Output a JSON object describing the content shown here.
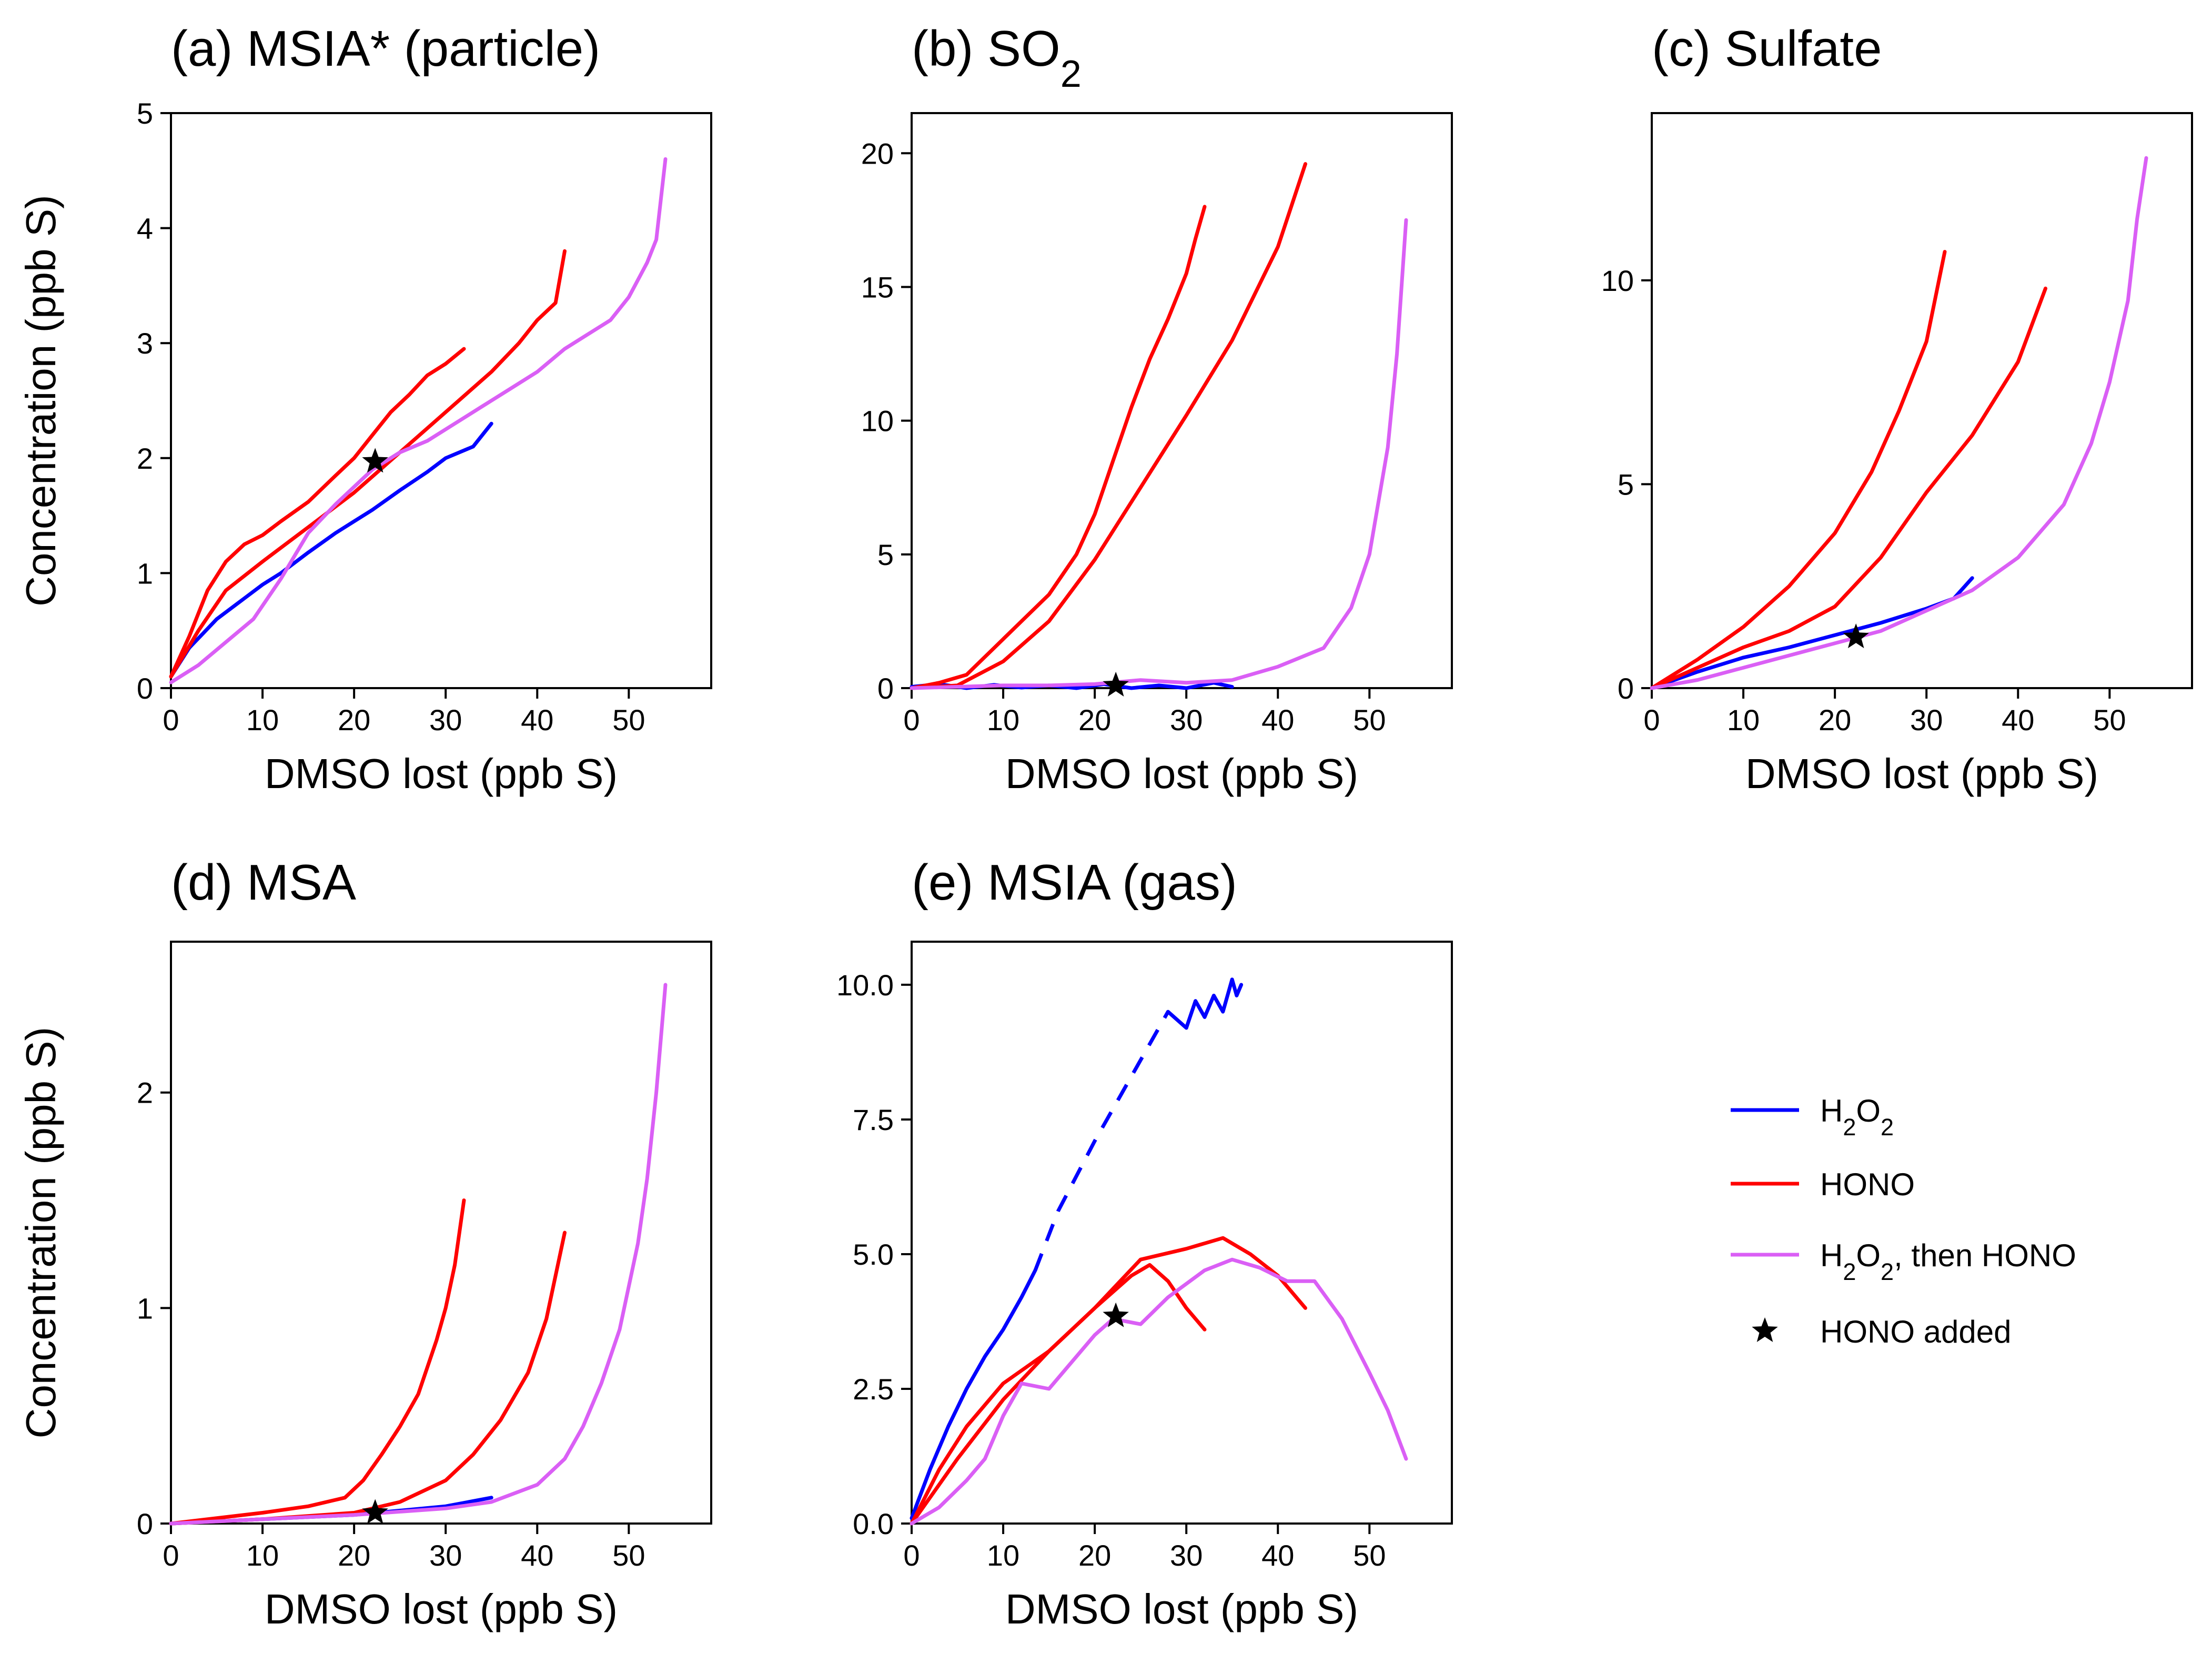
{
  "figure": {
    "legend_position": "right, beside panel (e)"
  },
  "legend": {
    "items": [
      {
        "key": "h2o2",
        "label": "H2O2",
        "color": "#0000FF",
        "marker": "line"
      },
      {
        "key": "hono",
        "label": "HONO",
        "color": "#FF0000",
        "marker": "line"
      },
      {
        "key": "h2o2_then_hono",
        "label": "H2O2, then HONO",
        "color": "#DA5FF5",
        "marker": "line"
      },
      {
        "key": "star",
        "label": "HONO added",
        "color": "#000000",
        "marker": "star"
      }
    ]
  },
  "chart_data": [
    {
      "id": "a",
      "type": "line",
      "title": "(a) MSIA* (particle)",
      "xlabel": "DMSO lost (ppb S)",
      "ylabel": "Concentration (ppb S)",
      "xlim": [
        0,
        59
      ],
      "ylim": [
        0,
        5
      ],
      "xticks": [
        0,
        10,
        20,
        30,
        40,
        50
      ],
      "yticks": [
        0,
        1,
        2,
        3,
        4,
        5
      ],
      "series": [
        {
          "name": "H2O2",
          "color": "#0000FF",
          "x": [
            0,
            2,
            5,
            8,
            10,
            12,
            15,
            18,
            20,
            22,
            25,
            28,
            30,
            33,
            35
          ],
          "y": [
            0.1,
            0.35,
            0.6,
            0.78,
            0.9,
            1.0,
            1.18,
            1.35,
            1.45,
            1.55,
            1.72,
            1.88,
            2.0,
            2.1,
            2.3
          ]
        },
        {
          "name": "HONO (slow)",
          "color": "#FF0000",
          "x": [
            0,
            3,
            6,
            10,
            15,
            20,
            25,
            30,
            35,
            38,
            40,
            42,
            43
          ],
          "y": [
            0.1,
            0.5,
            0.85,
            1.1,
            1.4,
            1.7,
            2.05,
            2.4,
            2.75,
            3.0,
            3.2,
            3.35,
            3.8
          ]
        },
        {
          "name": "HONO (fast)",
          "color": "#FF0000",
          "x": [
            0,
            2,
            4,
            6,
            8,
            10,
            12,
            15,
            18,
            20,
            22,
            24,
            26,
            28,
            30,
            32
          ],
          "y": [
            0.1,
            0.45,
            0.85,
            1.1,
            1.25,
            1.33,
            1.45,
            1.62,
            1.85,
            2.0,
            2.2,
            2.4,
            2.55,
            2.72,
            2.82,
            2.95
          ]
        },
        {
          "name": "H2O2, then HONO",
          "color": "#DA5FF5",
          "x": [
            0,
            3,
            6,
            9,
            12,
            15,
            18,
            22,
            25,
            28,
            31,
            34,
            37,
            40,
            43,
            46,
            48,
            50,
            52,
            53,
            54
          ],
          "y": [
            0.05,
            0.2,
            0.4,
            0.6,
            0.95,
            1.35,
            1.6,
            1.9,
            2.05,
            2.15,
            2.3,
            2.45,
            2.6,
            2.75,
            2.95,
            3.1,
            3.2,
            3.4,
            3.7,
            3.9,
            4.6
          ]
        }
      ],
      "markers": [
        {
          "x": 22.3,
          "y": 1.97,
          "label": "HONO added"
        }
      ]
    },
    {
      "id": "b",
      "type": "line",
      "title": "(b) SO2",
      "xlabel": "DMSO lost (ppb S)",
      "ylabel": "",
      "xlim": [
        0,
        59
      ],
      "ylim": [
        0,
        21.5
      ],
      "xticks": [
        0,
        10,
        20,
        30,
        40,
        50
      ],
      "yticks": [
        0,
        5,
        10,
        15,
        20
      ],
      "series": [
        {
          "name": "H2O2",
          "color": "#0000FF",
          "x": [
            0,
            3,
            6,
            9,
            12,
            15,
            18,
            21,
            24,
            27,
            30,
            33,
            35
          ],
          "y": [
            0.05,
            0.15,
            0.0,
            0.12,
            0.02,
            0.1,
            0.0,
            0.15,
            0.0,
            0.1,
            0.0,
            0.2,
            0.05
          ]
        },
        {
          "name": "HONO (fast)",
          "color": "#FF0000",
          "x": [
            0,
            3,
            6,
            9,
            12,
            15,
            18,
            20,
            22,
            24,
            26,
            28,
            30,
            31,
            32
          ],
          "y": [
            0,
            0.2,
            0.5,
            1.5,
            2.5,
            3.5,
            5.0,
            6.5,
            8.5,
            10.5,
            12.3,
            13.8,
            15.5,
            16.8,
            18.0
          ]
        },
        {
          "name": "HONO (slow)",
          "color": "#FF0000",
          "x": [
            0,
            5,
            10,
            15,
            20,
            25,
            30,
            35,
            40,
            43
          ],
          "y": [
            0,
            0.1,
            1.0,
            2.5,
            4.8,
            7.5,
            10.2,
            13.0,
            16.5,
            19.6
          ]
        },
        {
          "name": "H2O2, then HONO",
          "color": "#DA5FF5",
          "x": [
            0,
            5,
            10,
            15,
            20,
            25,
            30,
            35,
            40,
            45,
            48,
            50,
            52,
            53,
            54
          ],
          "y": [
            0.0,
            0.05,
            0.1,
            0.1,
            0.15,
            0.3,
            0.2,
            0.3,
            0.8,
            1.5,
            3.0,
            5.0,
            9.0,
            12.5,
            17.5
          ]
        }
      ],
      "markers": [
        {
          "x": 22.3,
          "y": 0.1,
          "label": "HONO added"
        }
      ]
    },
    {
      "id": "c",
      "type": "line",
      "title": "(c) Sulfate",
      "xlabel": "DMSO lost (ppb S)",
      "ylabel": "",
      "xlim": [
        0,
        59
      ],
      "ylim": [
        0,
        14.1
      ],
      "xticks": [
        0,
        10,
        20,
        30,
        40,
        50
      ],
      "yticks": [
        0,
        5,
        10
      ],
      "series": [
        {
          "name": "H2O2",
          "color": "#0000FF",
          "x": [
            0,
            5,
            10,
            15,
            20,
            25,
            30,
            33,
            35
          ],
          "y": [
            0.0,
            0.4,
            0.75,
            1.0,
            1.3,
            1.6,
            1.95,
            2.2,
            2.7
          ]
        },
        {
          "name": "HONO (fast)",
          "color": "#FF0000",
          "x": [
            0,
            5,
            10,
            15,
            20,
            24,
            27,
            30,
            31,
            32
          ],
          "y": [
            0,
            0.7,
            1.5,
            2.5,
            3.8,
            5.3,
            6.8,
            8.5,
            9.6,
            10.7
          ]
        },
        {
          "name": "HONO (slow)",
          "color": "#FF0000",
          "x": [
            0,
            5,
            10,
            15,
            20,
            25,
            30,
            35,
            40,
            43
          ],
          "y": [
            0,
            0.5,
            1.0,
            1.4,
            2.0,
            3.2,
            4.8,
            6.2,
            8.0,
            9.8
          ]
        },
        {
          "name": "H2O2, then HONO",
          "color": "#DA5FF5",
          "x": [
            0,
            5,
            10,
            15,
            20,
            25,
            30,
            35,
            40,
            45,
            48,
            50,
            52,
            53,
            54
          ],
          "y": [
            0,
            0.2,
            0.5,
            0.8,
            1.1,
            1.4,
            1.9,
            2.4,
            3.2,
            4.5,
            6.0,
            7.5,
            9.5,
            11.5,
            13.0
          ]
        }
      ],
      "markers": [
        {
          "x": 22.3,
          "y": 1.25,
          "label": "HONO added"
        }
      ]
    },
    {
      "id": "d",
      "type": "line",
      "title": "(d) MSA",
      "xlabel": "DMSO lost (ppb S)",
      "ylabel": "Concentration (ppb S)",
      "xlim": [
        0,
        59
      ],
      "ylim": [
        0,
        2.7
      ],
      "xticks": [
        0,
        10,
        20,
        30,
        40,
        50
      ],
      "yticks": [
        0,
        1,
        2
      ],
      "series": [
        {
          "name": "H2O2",
          "color": "#0000FF",
          "x": [
            0,
            10,
            20,
            25,
            30,
            35
          ],
          "y": [
            0,
            0.02,
            0.04,
            0.06,
            0.08,
            0.12
          ]
        },
        {
          "name": "HONO (fast)",
          "color": "#FF0000",
          "x": [
            0,
            10,
            15,
            19,
            21,
            23,
            25,
            27,
            29,
            30,
            31,
            32
          ],
          "y": [
            0,
            0.05,
            0.08,
            0.12,
            0.2,
            0.32,
            0.45,
            0.6,
            0.85,
            1.0,
            1.2,
            1.5
          ]
        },
        {
          "name": "HONO (slow)",
          "color": "#FF0000",
          "x": [
            0,
            10,
            20,
            25,
            30,
            33,
            36,
            39,
            41,
            43
          ],
          "y": [
            0,
            0.02,
            0.05,
            0.1,
            0.2,
            0.32,
            0.48,
            0.7,
            0.95,
            1.35
          ]
        },
        {
          "name": "H2O2, then HONO",
          "color": "#DA5FF5",
          "x": [
            0,
            10,
            20,
            30,
            35,
            40,
            43,
            45,
            47,
            49,
            51,
            52,
            53,
            54
          ],
          "y": [
            0,
            0.02,
            0.04,
            0.07,
            0.1,
            0.18,
            0.3,
            0.45,
            0.65,
            0.9,
            1.3,
            1.6,
            2.0,
            2.5
          ]
        }
      ],
      "markers": [
        {
          "x": 22.3,
          "y": 0.05,
          "label": "HONO added"
        }
      ]
    },
    {
      "id": "e",
      "type": "line",
      "title": "(e) MSIA (gas)",
      "xlabel": "DMSO lost (ppb S)",
      "ylabel": "",
      "xlim": [
        0,
        59
      ],
      "ylim": [
        0,
        10.8
      ],
      "xticks": [
        0,
        10,
        20,
        30,
        40,
        50
      ],
      "yticks": [
        0,
        2.5,
        5,
        7.5,
        10
      ],
      "ytick_labels": [
        "0.0",
        "2.5",
        "5.0",
        "7.5",
        "10.0"
      ],
      "series": [
        {
          "name": "H2O2",
          "color": "#0000FF",
          "x": [
            0,
            2,
            4,
            6,
            8,
            10,
            12,
            13.5
          ],
          "y": [
            0.1,
            1.0,
            1.8,
            2.5,
            3.1,
            3.6,
            4.2,
            4.7
          ]
        },
        {
          "name": "H2O2 (dashed)",
          "color": "#0000FF",
          "dashed": true,
          "x": [
            13.5,
            16,
            20,
            24,
            28
          ],
          "y": [
            4.7,
            5.8,
            7.1,
            8.3,
            9.5
          ]
        },
        {
          "name": "H2O2 (late)",
          "color": "#0000FF",
          "x": [
            28,
            30,
            31,
            32,
            33,
            34,
            35,
            35.5,
            36
          ],
          "y": [
            9.5,
            9.2,
            9.7,
            9.4,
            9.8,
            9.5,
            10.1,
            9.8,
            10.0
          ]
        },
        {
          "name": "HONO (fast)",
          "color": "#FF0000",
          "x": [
            0,
            3,
            6,
            10,
            15,
            20,
            24,
            26,
            28,
            30,
            32
          ],
          "y": [
            0,
            1.0,
            1.8,
            2.6,
            3.2,
            4.0,
            4.6,
            4.8,
            4.5,
            4.0,
            3.6
          ]
        },
        {
          "name": "HONO (slow)",
          "color": "#FF0000",
          "x": [
            0,
            5,
            10,
            15,
            20,
            25,
            30,
            34,
            37,
            40,
            43
          ],
          "y": [
            0,
            1.2,
            2.3,
            3.2,
            4.0,
            4.9,
            5.1,
            5.3,
            5.0,
            4.6,
            4.0
          ]
        },
        {
          "name": "H2O2, then HONO",
          "color": "#DA5FF5",
          "x": [
            0,
            3,
            6,
            8,
            10,
            12,
            15,
            20,
            22,
            25,
            28,
            32,
            35,
            38,
            41,
            44,
            47,
            50,
            52,
            54
          ],
          "y": [
            0,
            0.3,
            0.8,
            1.2,
            2.0,
            2.6,
            2.5,
            3.5,
            3.8,
            3.7,
            4.2,
            4.7,
            4.9,
            4.75,
            4.5,
            4.5,
            3.8,
            2.8,
            2.1,
            1.2
          ]
        }
      ],
      "markers": [
        {
          "x": 22.3,
          "y": 3.85,
          "label": "HONO added"
        }
      ]
    }
  ]
}
